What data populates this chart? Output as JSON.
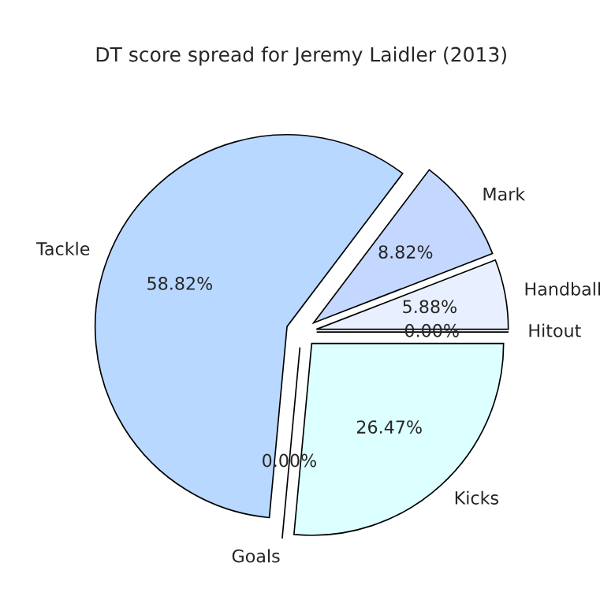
{
  "chart_data": {
    "type": "pie",
    "title": "DT score spread for Jeremy Laidler (2013)",
    "categories": [
      "Hitout",
      "Handball",
      "Mark",
      "Tackle",
      "Goals",
      "Kicks"
    ],
    "values": [
      0,
      5.88,
      8.82,
      58.82,
      0,
      26.47
    ],
    "value_labels": [
      "0.00%",
      "5.88%",
      "8.82%",
      "58.82%",
      "0.00%",
      "26.47%"
    ],
    "colors": [
      "#e0ecff",
      "#e8f0ff",
      "#c4d8ff",
      "#b8d8ff",
      "#d0e8ff",
      "#dcffff"
    ]
  }
}
